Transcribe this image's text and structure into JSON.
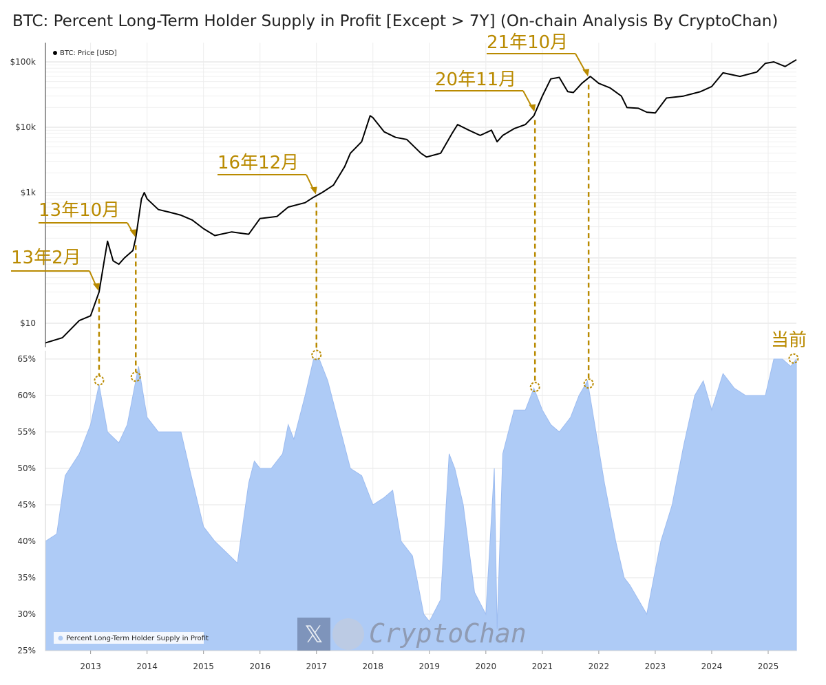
{
  "chart_data": {
    "type": "line",
    "title": "BTC: Percent Long-Term Holder Supply in Profit [Except > 7Y] (On-chain Analysis By CryptoChan)",
    "x_ticks": [
      "2013",
      "2014",
      "2015",
      "2016",
      "2017",
      "2018",
      "2019",
      "2020",
      "2021",
      "2022",
      "2023",
      "2024",
      "2025"
    ],
    "price_axis": {
      "scale": "log",
      "ticks": [
        "$10",
        "$1k",
        "$10k",
        "$100k"
      ],
      "tick_values": [
        10,
        1000,
        10000,
        100000
      ]
    },
    "supply_axis": {
      "ylim": [
        25,
        66
      ],
      "ticks": [
        "25%",
        "30%",
        "35%",
        "40%",
        "45%",
        "50%",
        "55%",
        "60%",
        "65%"
      ],
      "tick_values": [
        25,
        30,
        35,
        40,
        45,
        50,
        55,
        60,
        65
      ]
    },
    "grid": true,
    "legend": {
      "placement": "top-left / bottom-left"
    },
    "series": [
      {
        "name": "BTC: Price [USD]",
        "color": "#000000",
        "x": [
          2012.2,
          2012.5,
          2012.8,
          2013.0,
          2013.15,
          2013.25,
          2013.3,
          2013.4,
          2013.5,
          2013.6,
          2013.75,
          2013.8,
          2013.9,
          2013.95,
          2014.0,
          2014.2,
          2014.4,
          2014.6,
          2014.8,
          2015.0,
          2015.2,
          2015.5,
          2015.8,
          2016.0,
          2016.3,
          2016.5,
          2016.8,
          2016.95,
          2017.1,
          2017.3,
          2017.5,
          2017.6,
          2017.8,
          2017.95,
          2018.0,
          2018.2,
          2018.4,
          2018.6,
          2018.85,
          2018.95,
          2019.2,
          2019.4,
          2019.5,
          2019.7,
          2019.9,
          2020.1,
          2020.2,
          2020.3,
          2020.5,
          2020.7,
          2020.85,
          2021.0,
          2021.15,
          2021.3,
          2021.45,
          2021.55,
          2021.7,
          2021.85,
          2022.0,
          2022.2,
          2022.4,
          2022.5,
          2022.7,
          2022.85,
          2023.0,
          2023.2,
          2023.5,
          2023.8,
          2024.0,
          2024.2,
          2024.5,
          2024.8,
          2024.95,
          2025.1,
          2025.3,
          2025.5
        ],
        "values": [
          5,
          6,
          11,
          13,
          30,
          100,
          180,
          90,
          80,
          100,
          130,
          200,
          800,
          1000,
          800,
          550,
          500,
          450,
          380,
          280,
          220,
          250,
          230,
          400,
          430,
          600,
          700,
          850,
          1000,
          1300,
          2500,
          4000,
          6000,
          15000,
          14000,
          8500,
          7000,
          6500,
          4000,
          3500,
          4000,
          8000,
          11000,
          9000,
          7500,
          9000,
          6000,
          7500,
          9500,
          11000,
          15000,
          30000,
          55000,
          58000,
          35000,
          34000,
          47000,
          60000,
          47000,
          40000,
          30000,
          20000,
          19500,
          17000,
          16500,
          28000,
          30000,
          35000,
          42000,
          68000,
          60000,
          70000,
          95000,
          100000,
          85000,
          108000
        ]
      },
      {
        "name": "Percent Long-Term Holder Supply in Profit",
        "color": "#aecbf6",
        "x": [
          2012.2,
          2012.4,
          2012.55,
          2012.8,
          2013.0,
          2013.15,
          2013.3,
          2013.5,
          2013.65,
          2013.75,
          2013.85,
          2014.0,
          2014.2,
          2014.4,
          2014.6,
          2014.75,
          2015.0,
          2015.2,
          2015.4,
          2015.6,
          2015.8,
          2015.9,
          2016.0,
          2016.2,
          2016.4,
          2016.5,
          2016.6,
          2016.8,
          2016.95,
          2017.05,
          2017.2,
          2017.4,
          2017.6,
          2017.8,
          2018.0,
          2018.2,
          2018.35,
          2018.5,
          2018.7,
          2018.9,
          2019.0,
          2019.2,
          2019.35,
          2019.45,
          2019.6,
          2019.8,
          2020.0,
          2020.15,
          2020.2,
          2020.3,
          2020.5,
          2020.7,
          2020.85,
          2021.0,
          2021.15,
          2021.3,
          2021.5,
          2021.65,
          2021.8,
          2021.95,
          2022.1,
          2022.3,
          2022.45,
          2022.55,
          2022.7,
          2022.85,
          2023.0,
          2023.1,
          2023.3,
          2023.5,
          2023.7,
          2023.85,
          2024.0,
          2024.2,
          2024.4,
          2024.6,
          2024.8,
          2024.95,
          2025.1,
          2025.25,
          2025.4,
          2025.5
        ],
        "values": [
          40,
          41,
          49,
          52,
          56,
          61.5,
          55,
          53.5,
          56,
          60,
          64,
          57,
          55,
          55,
          55,
          50,
          42,
          40,
          38.5,
          37,
          48,
          51,
          50,
          50,
          52,
          56,
          54,
          60,
          65,
          65,
          62,
          56,
          50,
          49,
          45,
          46,
          47,
          40,
          38,
          30,
          29,
          32,
          52,
          50,
          45,
          33,
          30,
          50,
          28,
          52,
          58,
          58,
          61,
          58,
          56,
          55,
          57,
          60,
          62,
          55,
          48,
          40,
          35,
          34,
          32,
          30,
          36,
          40,
          45,
          53,
          60,
          62,
          58,
          63,
          61,
          60,
          60,
          60,
          65,
          65,
          64,
          65
        ]
      }
    ],
    "annotations": [
      {
        "label": "13年2月",
        "x": 2013.15
      },
      {
        "label": "13年10月",
        "x": 2013.8
      },
      {
        "label": "16年12月",
        "x": 2017.0
      },
      {
        "label": "20年11月",
        "x": 2020.87
      },
      {
        "label": "21年10月",
        "x": 2021.82
      },
      {
        "label": "当前",
        "x": 2025.45
      }
    ],
    "watermark": "CryptoChan"
  },
  "colors": {
    "annotation": "#b98a00",
    "area": "#aecbf6",
    "line": "#000000",
    "grid": "#e6e6e6"
  }
}
